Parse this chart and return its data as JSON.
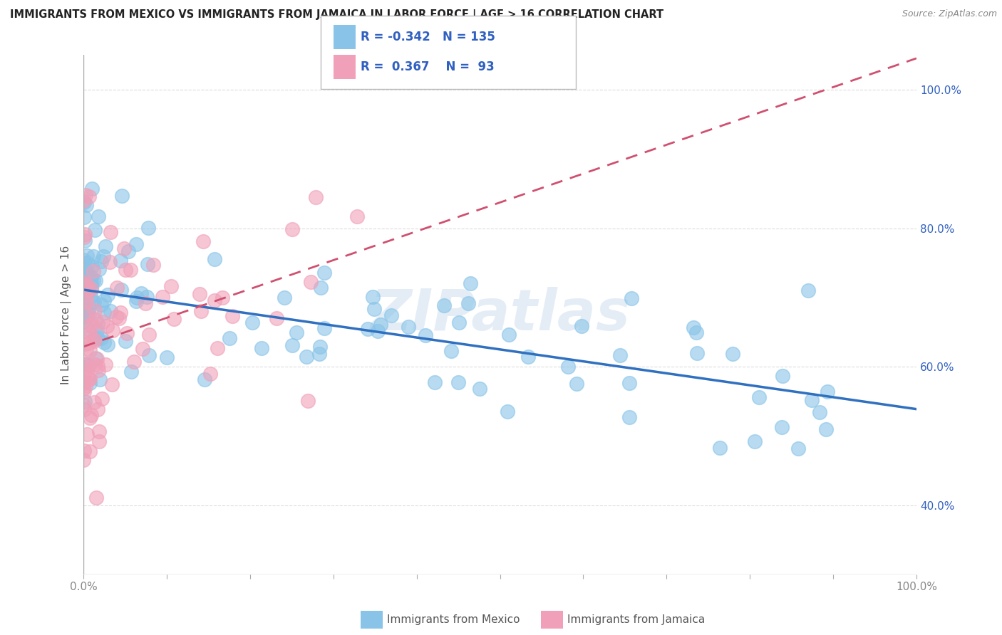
{
  "title": "IMMIGRANTS FROM MEXICO VS IMMIGRANTS FROM JAMAICA IN LABOR FORCE | AGE > 16 CORRELATION CHART",
  "source": "Source: ZipAtlas.com",
  "ylabel": "In Labor Force | Age > 16",
  "legend_entries": [
    "Immigrants from Mexico",
    "Immigrants from Jamaica"
  ],
  "mexico_color": "#89C4E8",
  "jamaica_color": "#F0A0B8",
  "mexico_R": -0.342,
  "mexico_N": 135,
  "jamaica_R": 0.367,
  "jamaica_N": 93,
  "xlim": [
    0.0,
    1.0
  ],
  "ylim": [
    0.3,
    1.05
  ],
  "watermark": "ZIPatlas",
  "background_color": "#FFFFFF",
  "grid_color": "#D8D8D8",
  "mexico_line_color": "#3070C0",
  "jamaica_line_color": "#D05070",
  "legend_box_color": "#E8F0F8",
  "legend_text_color": "#3060C0",
  "right_tick_color": "#3060C0",
  "bottom_tick_color": "#888888",
  "ylabel_color": "#555555",
  "title_color": "#222222",
  "source_color": "#888888"
}
